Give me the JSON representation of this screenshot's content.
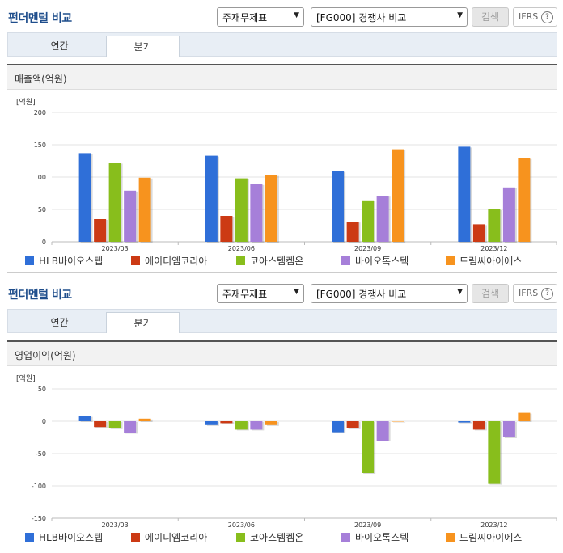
{
  "sections": [
    {
      "header": {
        "title": "펀더멘털 비교",
        "select1": "주재무제표",
        "select2": "[FG000] 경쟁사 비교",
        "search_label": "검색",
        "ifrs_label": "IFRS",
        "help_label": "?"
      },
      "tabs": [
        {
          "label": "연간"
        },
        {
          "label": "분기"
        }
      ],
      "active_tab": 1,
      "chart_title": "매출액(억원)",
      "unit": "[억원]"
    },
    {
      "header": {
        "title": "펀더멘털 비교",
        "select1": "주재무제표",
        "select2": "[FG000] 경쟁사 비교",
        "search_label": "검색",
        "ifrs_label": "IFRS",
        "help_label": "?"
      },
      "tabs": [
        {
          "label": "연간"
        },
        {
          "label": "분기"
        }
      ],
      "active_tab": 1,
      "chart_title": "영업이익(억원)",
      "unit": "[억원]"
    }
  ],
  "colors": [
    "#2f6fd8",
    "#cc3a14",
    "#88be1c",
    "#a67fd9",
    "#f7931e"
  ],
  "chart_data": [
    {
      "type": "bar",
      "title": "매출액(억원)",
      "ylabel": "[억원]",
      "categories": [
        "2023/03",
        "2023/06",
        "2023/09",
        "2023/12"
      ],
      "ylim": [
        0,
        200
      ],
      "yticks": [
        0,
        50,
        100,
        150,
        200
      ],
      "series": [
        {
          "name": "HLB바이오스텝",
          "values": [
            137,
            133,
            109,
            147
          ]
        },
        {
          "name": "에이디엠코리아",
          "values": [
            35,
            40,
            31,
            27
          ]
        },
        {
          "name": "코아스템켐온",
          "values": [
            122,
            98,
            64,
            50
          ]
        },
        {
          "name": "바이오톡스텍",
          "values": [
            79,
            89,
            71,
            84
          ]
        },
        {
          "name": "드림씨아이에스",
          "values": [
            99,
            103,
            143,
            129
          ]
        }
      ]
    },
    {
      "type": "bar",
      "title": "영업이익(억원)",
      "ylabel": "[억원]",
      "categories": [
        "2023/03",
        "2023/06",
        "2023/09",
        "2023/12"
      ],
      "ylim": [
        -150,
        50
      ],
      "yticks": [
        50,
        0,
        -50,
        -100,
        -150
      ],
      "series": [
        {
          "name": "HLB바이오스텝",
          "values": [
            8,
            -6,
            -17,
            -2
          ]
        },
        {
          "name": "에이디엠코리아",
          "values": [
            -9,
            -3,
            -11,
            -13
          ]
        },
        {
          "name": "코아스템켐온",
          "values": [
            -11,
            -13,
            -80,
            -97
          ]
        },
        {
          "name": "바이오톡스텍",
          "values": [
            -18,
            -13,
            -30,
            -25
          ]
        },
        {
          "name": "드림씨아이에스",
          "values": [
            4,
            -6,
            0,
            13
          ]
        }
      ]
    }
  ]
}
